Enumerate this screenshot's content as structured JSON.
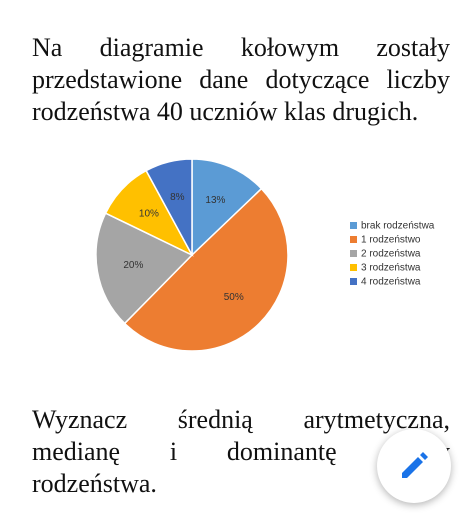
{
  "text_top": "Na diagramie kołowym zostały przedstawione dane dotyczące liczby rodzeństwa 40 uczniów klas drugich.",
  "chart_data": {
    "type": "pie",
    "categories": [
      "brak rodzeństwa",
      "1 rodzeństwo",
      "2 rodzeństwa",
      "3 rodzeństwa",
      "4 rodzeństwa"
    ],
    "values": [
      13,
      50,
      20,
      10,
      8
    ],
    "value_labels": [
      "13%",
      "50%",
      "20%",
      "10%",
      "8%"
    ],
    "colors": [
      "#5b9bd5",
      "#ed7d31",
      "#a5a5a5",
      "#ffc000",
      "#4472c4"
    ],
    "legend": "right"
  },
  "text_bottom": "Wyznacz średnią arytmetyczna, medianę i dominantę liczby rodzeństwa."
}
